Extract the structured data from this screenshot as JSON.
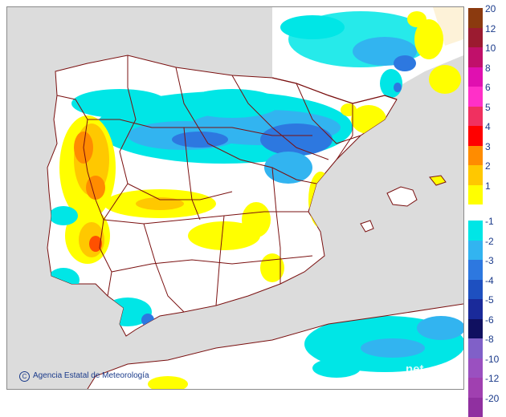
{
  "credit": "Agencia Estatal de Meteorología",
  "watermark": "net",
  "colors": {
    "sea": "#dcdcdc",
    "land": "#ffffff",
    "border": "#7a1010",
    "frame": "#8a8a8a"
  },
  "legend": {
    "positive": [
      {
        "label": "20",
        "color": "#8b3a0f"
      },
      {
        "label": "12",
        "color": "#9b1b30"
      },
      {
        "label": "10",
        "color": "#c0106a"
      },
      {
        "label": "8",
        "color": "#e010b0"
      },
      {
        "label": "6",
        "color": "#ff30c8"
      },
      {
        "label": "5",
        "color": "#f03060"
      },
      {
        "label": "4",
        "color": "#ff0000"
      },
      {
        "label": "3",
        "color": "#ff8c00"
      },
      {
        "label": "2",
        "color": "#ffc800"
      },
      {
        "label": "1",
        "color": "#ffff00"
      }
    ],
    "negative": [
      {
        "label": "-1",
        "color": "#00e6e6"
      },
      {
        "label": "-2",
        "color": "#32b4f0"
      },
      {
        "label": "-3",
        "color": "#2d78e0"
      },
      {
        "label": "-4",
        "color": "#1e50c0"
      },
      {
        "label": "-5",
        "color": "#1a2a9a"
      },
      {
        "label": "-6",
        "color": "#101060"
      },
      {
        "label": "-8",
        "color": "#8060c8"
      },
      {
        "label": "-10",
        "color": "#9a50c0"
      },
      {
        "label": "-12",
        "color": "#a040b0"
      },
      {
        "label": "-20",
        "color": "#9030a0"
      }
    ]
  }
}
